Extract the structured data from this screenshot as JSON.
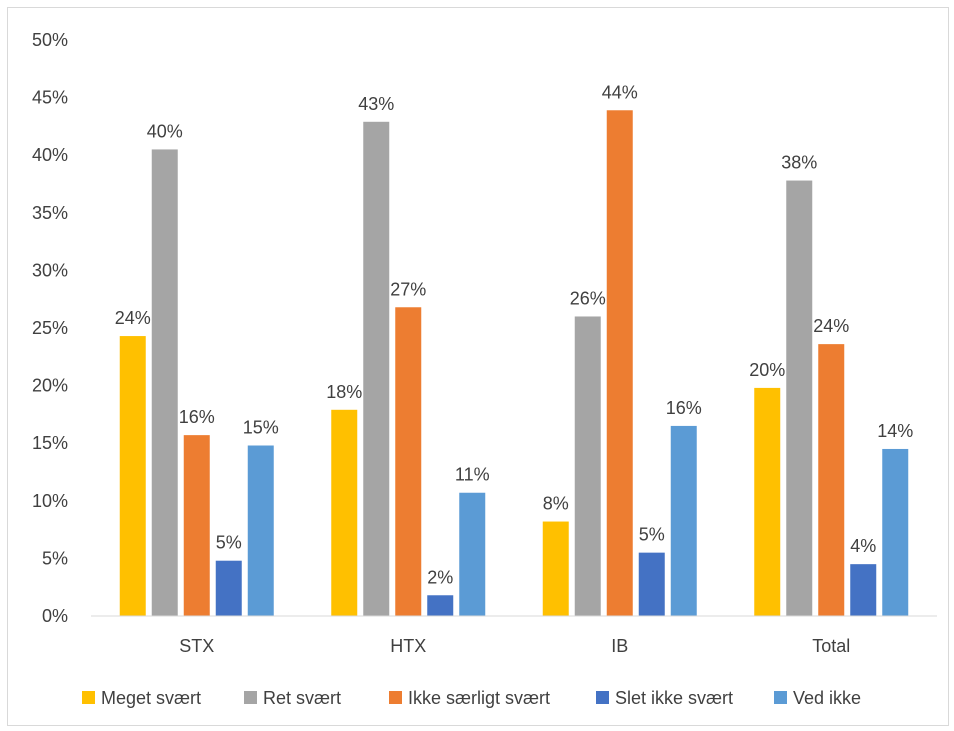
{
  "chart_data": {
    "type": "bar",
    "categories": [
      "STX",
      "HTX",
      "IB",
      "Total"
    ],
    "series": [
      {
        "name": "Meget svært",
        "color": "#ffc000",
        "values": [
          24.3,
          17.9,
          8.2,
          19.8
        ],
        "labels": [
          "24%",
          "18%",
          "8%",
          "20%"
        ]
      },
      {
        "name": "Ret svært",
        "color": "#a5a5a5",
        "values": [
          40.5,
          42.9,
          26.0,
          37.8
        ],
        "labels": [
          "40%",
          "43%",
          "26%",
          "38%"
        ]
      },
      {
        "name": "Ikke særligt svært",
        "color": "#ed7d31",
        "values": [
          15.7,
          26.8,
          43.9,
          23.6
        ],
        "labels": [
          "16%",
          "27%",
          "44%",
          "24%"
        ]
      },
      {
        "name": "Slet ikke svært",
        "color": "#4472c4",
        "values": [
          4.8,
          1.8,
          5.5,
          4.5
        ],
        "labels": [
          "5%",
          "2%",
          "5%",
          "4%"
        ]
      },
      {
        "name": "Ved ikke",
        "color": "#5b9bd5",
        "values": [
          14.8,
          10.7,
          16.5,
          14.5
        ],
        "labels": [
          "15%",
          "11%",
          "16%",
          "14%"
        ]
      }
    ],
    "yticks": [
      "0%",
      "5%",
      "10%",
      "15%",
      "20%",
      "25%",
      "30%",
      "35%",
      "40%",
      "45%",
      "50%"
    ],
    "ylim": [
      0,
      50
    ],
    "grid": false,
    "legend_position": "bottom",
    "title": "",
    "xlabel": "",
    "ylabel": ""
  }
}
